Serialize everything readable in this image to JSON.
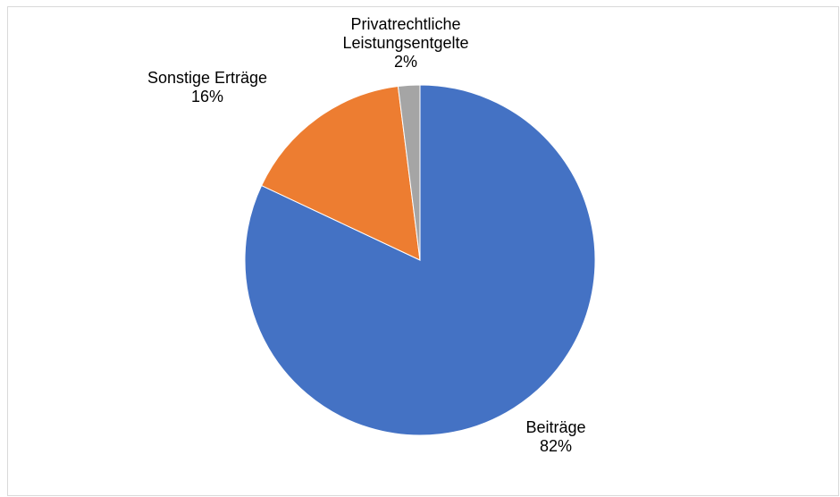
{
  "chart_data": {
    "type": "pie",
    "title": "",
    "start_angle_deg": 0,
    "direction": "clockwise",
    "slices": [
      {
        "label": "Beiträge",
        "value": 82,
        "percent_label": "82%",
        "color": "#4472C4"
      },
      {
        "label": "Sonstige Erträge",
        "value": 16,
        "percent_label": "16%",
        "color": "#ED7D31"
      },
      {
        "label": "Privatrechtliche Leistungsentgelte",
        "label_lines": [
          "Privatrechtliche",
          "Leistungsentgelte"
        ],
        "value": 2,
        "percent_label": "2%",
        "color": "#A5A5A5"
      }
    ]
  }
}
